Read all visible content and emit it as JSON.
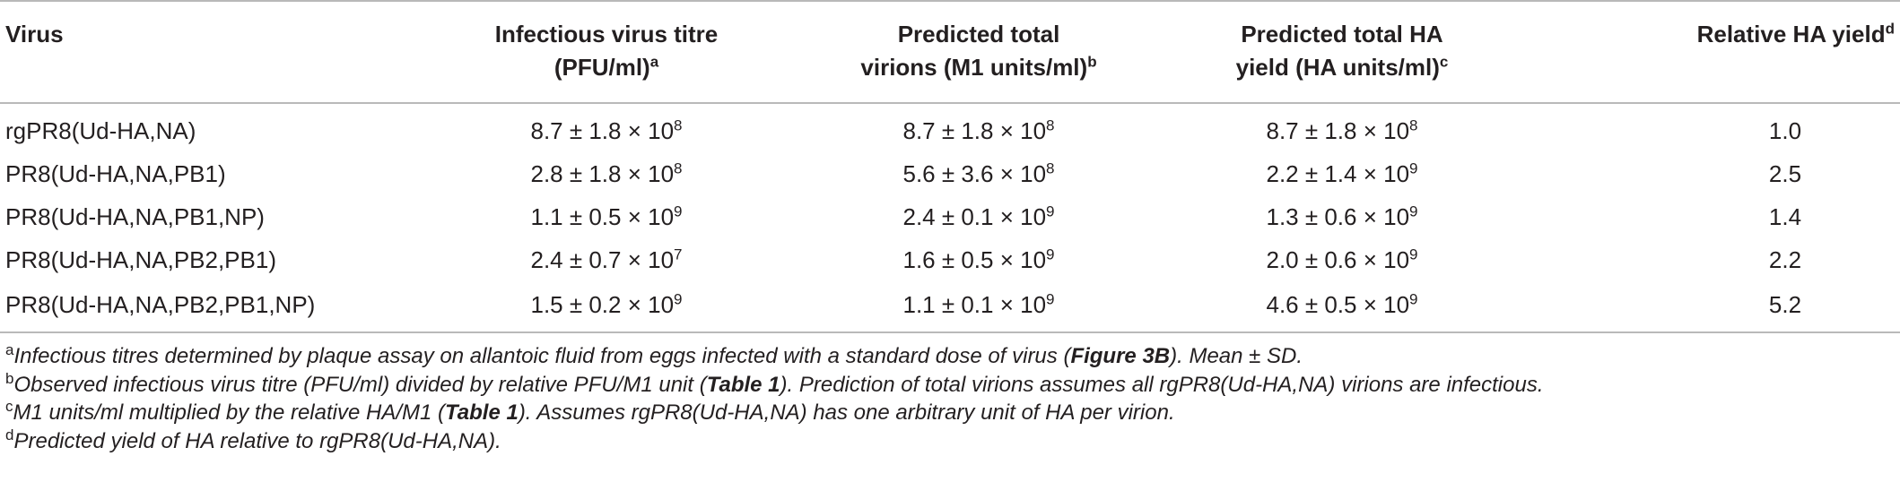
{
  "table": {
    "headers": {
      "virus": "Virus",
      "titre": {
        "line1": "Infectious virus titre",
        "line2": "(PFU/ml)",
        "sup": "a"
      },
      "virions": {
        "line1": "Predicted total",
        "line2": "virions (M1 units/ml)",
        "sup": "b"
      },
      "ha_yield": {
        "line1": "Predicted total HA",
        "line2": "yield (HA units/ml)",
        "sup": "c"
      },
      "relative": {
        "text": "Relative HA yield",
        "sup": "d"
      }
    },
    "rows": [
      {
        "virus": "rgPR8(Ud-HA,NA)",
        "titre": {
          "mant": "8.7 ± 1.8 × 10",
          "exp": "8"
        },
        "virions": {
          "mant": "8.7 ± 1.8 × 10",
          "exp": "8"
        },
        "ha": {
          "mant": "8.7 ± 1.8 × 10",
          "exp": "8"
        },
        "relative": "1.0"
      },
      {
        "virus": "PR8(Ud-HA,NA,PB1)",
        "titre": {
          "mant": "2.8 ± 1.8 × 10",
          "exp": "8"
        },
        "virions": {
          "mant": "5.6 ± 3.6 × 10",
          "exp": "8"
        },
        "ha": {
          "mant": "2.2 ± 1.4 × 10",
          "exp": "9"
        },
        "relative": "2.5"
      },
      {
        "virus": "PR8(Ud-HA,NA,PB1,NP)",
        "titre": {
          "mant": "1.1 ± 0.5 × 10",
          "exp": "9"
        },
        "virions": {
          "mant": "2.4 ± 0.1 × 10",
          "exp": "9"
        },
        "ha": {
          "mant": "1.3 ± 0.6 × 10",
          "exp": "9"
        },
        "relative": "1.4"
      },
      {
        "virus": "PR8(Ud-HA,NA,PB2,PB1)",
        "titre": {
          "mant": "2.4 ± 0.7 × 10",
          "exp": "7"
        },
        "virions": {
          "mant": "1.6 ± 0.5 × 10",
          "exp": "9"
        },
        "ha": {
          "mant": "2.0 ± 0.6 × 10",
          "exp": "9"
        },
        "relative": "2.2"
      },
      {
        "virus": "PR8(Ud-HA,NA,PB2,PB1,NP)",
        "titre": {
          "mant": "1.5 ± 0.2 × 10",
          "exp": "9"
        },
        "virions": {
          "mant": "1.1 ± 0.1 × 10",
          "exp": "9"
        },
        "ha": {
          "mant": "4.6 ± 0.5 × 10",
          "exp": "9"
        },
        "relative": "5.2"
      }
    ]
  },
  "footnotes": {
    "a": {
      "mark": "a",
      "before": "Infectious titres determined by plaque assay on allantoic fluid from eggs infected with a standard dose of virus (",
      "bold": "Figure 3B",
      "after": "). Mean ± SD."
    },
    "b": {
      "mark": "b",
      "before": "Observed infectious virus titre (PFU/ml) divided by relative PFU/M1 unit (",
      "bold": "Table 1",
      "after": "). Prediction of total virions assumes all rgPR8(Ud-HA,NA) virions are infectious."
    },
    "c": {
      "mark": "c",
      "before": "M1 units/ml multiplied by the relative HA/M1 (",
      "bold": "Table 1",
      "after": "). Assumes rgPR8(Ud-HA,NA) has one arbitrary unit of HA per virion."
    },
    "d": {
      "mark": "d",
      "before": "Predicted yield of HA relative to rgPR8(Ud-HA,NA).",
      "bold": "",
      "after": ""
    }
  }
}
